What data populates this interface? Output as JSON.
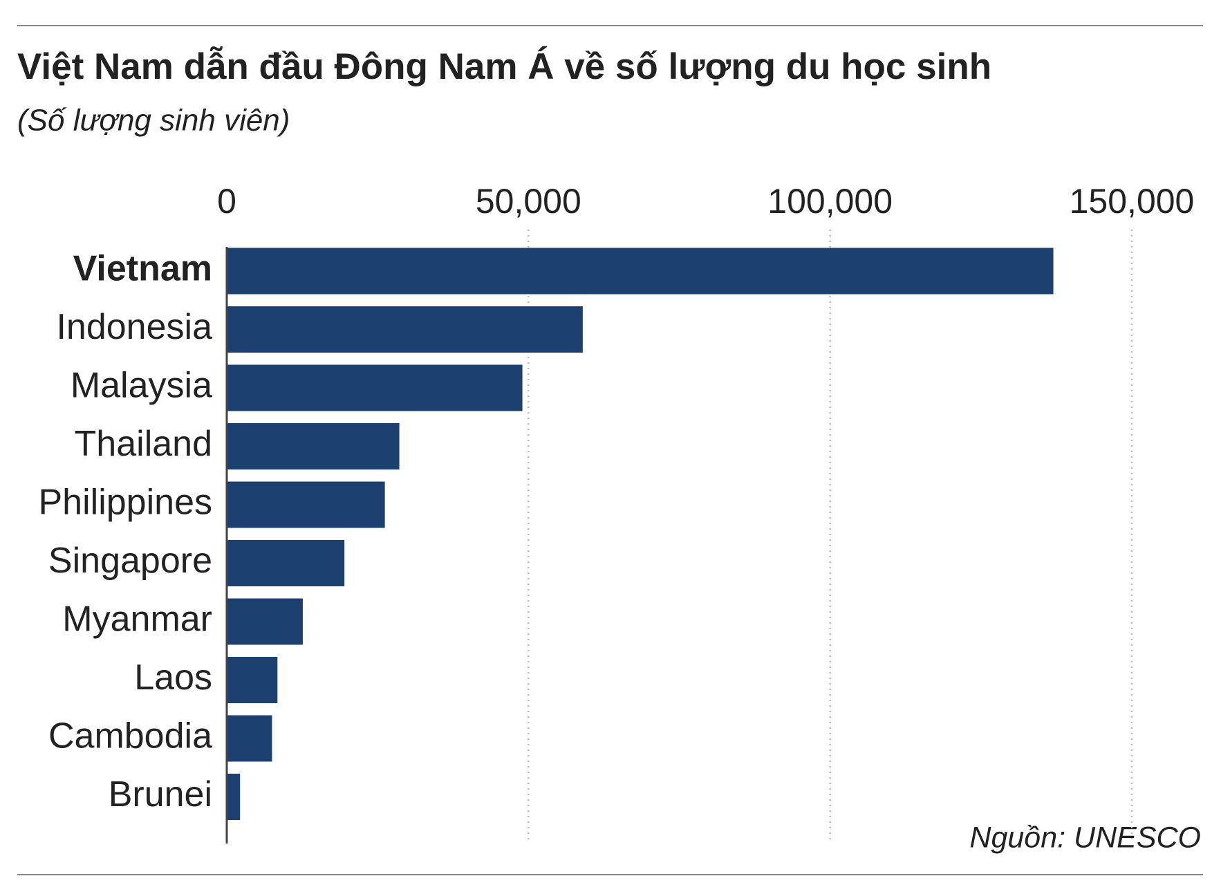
{
  "chart_data": {
    "type": "bar",
    "orientation": "horizontal",
    "title": "Việt Nam dẫn đầu Đông Nam Á về số lượng du học sinh",
    "subtitle": "(Số lượng sinh viên)",
    "source": "Nguồn: UNESCO",
    "categories": [
      "Vietnam",
      "Indonesia",
      "Malaysia",
      "Thailand",
      "Philippines",
      "Singapore",
      "Myanmar",
      "Laos",
      "Cambodia",
      "Brunei"
    ],
    "values": [
      137000,
      59000,
      49000,
      28600,
      26200,
      19500,
      12600,
      8400,
      7500,
      2200
    ],
    "color": "#1c4170",
    "xlim": [
      0,
      150000
    ],
    "xticks": [
      0,
      {
        "value": 50000,
        "label": "50,000"
      },
      {
        "value": 100000,
        "label": "100,000"
      },
      {
        "value": 150000,
        "label": "150,000"
      }
    ],
    "grid": true
  }
}
